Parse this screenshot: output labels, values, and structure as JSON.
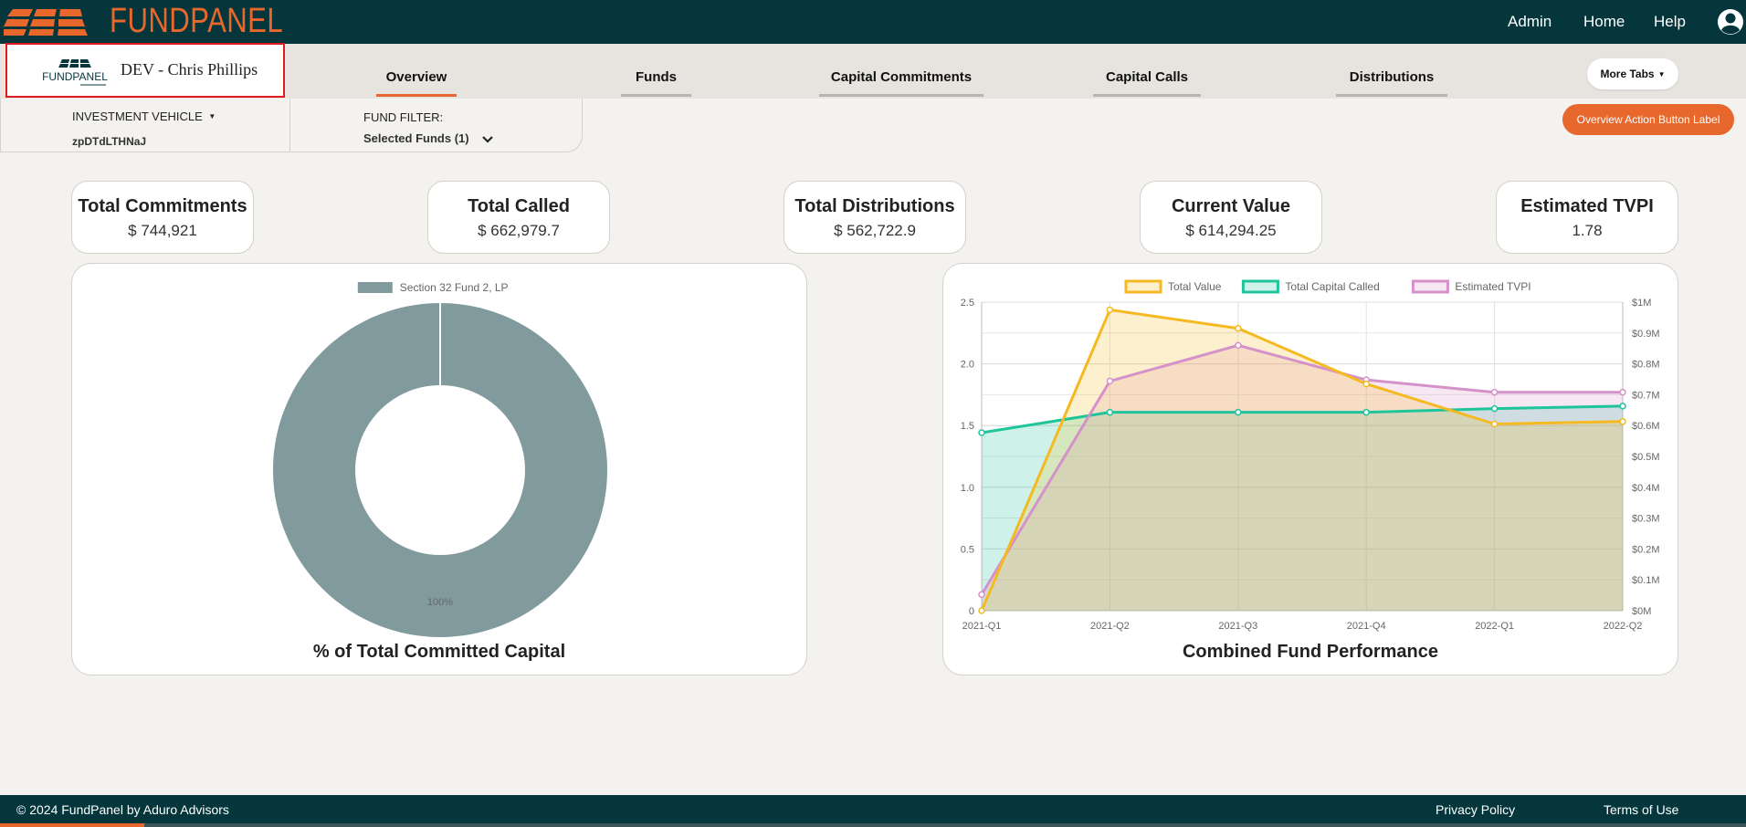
{
  "app": {
    "brand": "FUNDPANEL",
    "brand_mark_text": "FUNDPANEL"
  },
  "topnav": {
    "admin": "Admin",
    "home": "Home",
    "help": "Help",
    "user_icon": "user-circle-icon"
  },
  "entity": {
    "name": "DEV - Chris Phillips",
    "logo_text": "FUNDPANEL"
  },
  "tabs": [
    {
      "label": "Overview",
      "active": true
    },
    {
      "label": "Funds",
      "active": false
    },
    {
      "label": "Capital Commitments",
      "active": false
    },
    {
      "label": "Capital Calls",
      "active": false
    },
    {
      "label": "Distributions",
      "active": false
    }
  ],
  "more_tabs": "More Tabs",
  "filters": {
    "investment_vehicle_label": "INVESTMENT VEHICLE",
    "investment_vehicle_value": "zpDTdLTHNaJ",
    "fund_filter_label": "FUND FILTER:",
    "fund_filter_value": "Selected Funds (1)"
  },
  "action_button": "Overview Action Button Label",
  "stats": [
    {
      "label": "Total Commitments",
      "value": "$ 744,921"
    },
    {
      "label": "Total Called",
      "value": "$ 662,979.7"
    },
    {
      "label": "Total Distributions",
      "value": "$ 562,722.9"
    },
    {
      "label": "Current Value",
      "value": "$ 614,294.25"
    },
    {
      "label": "Estimated TVPI",
      "value": "1.78"
    }
  ],
  "colors": {
    "brand_orange": "#e8672c",
    "header_teal": "#04363c",
    "donut": "#819a9d",
    "total_value": "#f5b921",
    "capital_called": "#1fc49a",
    "tvpi": "#d591c9"
  },
  "chart_data": [
    {
      "type": "pie",
      "title": "% of Total Committed Capital",
      "categories": [
        "Section 32 Fund 2, LP"
      ],
      "values": [
        100
      ],
      "data_labels": [
        "100%"
      ],
      "donut": true,
      "legend": "top"
    },
    {
      "type": "area",
      "title": "Combined Fund Performance",
      "categories": [
        "2021-Q1",
        "2021-Q2",
        "2021-Q3",
        "2021-Q4",
        "2022-Q1",
        "2022-Q2"
      ],
      "series": [
        {
          "name": "Total Value",
          "axis": "right",
          "values": [
            0,
            975000,
            915000,
            735000,
            605000,
            613000
          ]
        },
        {
          "name": "Total Capital Called",
          "axis": "right",
          "values": [
            577000,
            643000,
            643000,
            643000,
            655000,
            663000
          ]
        },
        {
          "name": "Estimated TVPI",
          "axis": "left",
          "values": [
            0.13,
            1.86,
            2.15,
            1.87,
            1.77,
            1.77
          ]
        }
      ],
      "left_axis": {
        "ylim": [
          0,
          2.5
        ],
        "ticks": [
          "0",
          "0.5",
          "1.0",
          "1.5",
          "2.0",
          "2.5"
        ]
      },
      "right_axis": {
        "ylim": [
          0,
          1000000
        ],
        "ticks": [
          "$0M",
          "$0.1M",
          "$0.2M",
          "$0.3M",
          "$0.4M",
          "$0.5M",
          "$0.6M",
          "$0.7M",
          "$0.8M",
          "$0.9M",
          "$1M"
        ]
      },
      "grid": true,
      "legend": "top"
    }
  ],
  "footer": {
    "copyright": "© 2024 FundPanel by Aduro Advisors",
    "privacy": "Privacy Policy",
    "terms": "Terms of Use"
  }
}
